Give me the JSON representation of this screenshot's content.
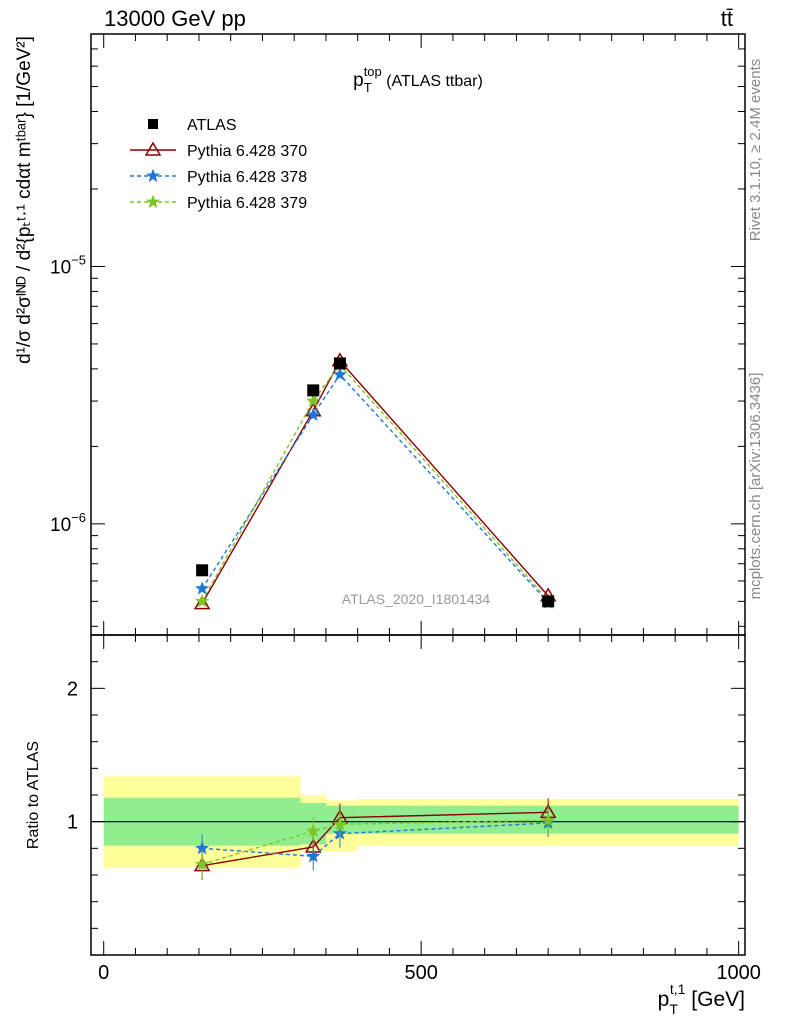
{
  "header": {
    "left": "13000 GeV pp",
    "right": "tt̄"
  },
  "side_labels": {
    "rivet": "Rivet 3.1.10, ≥ 2.4M events",
    "mcplots": "mcplots.cern.ch [arXiv:1306.3436]"
  },
  "chart_data": {
    "type": "line",
    "title_main": "p",
    "title_sub": "T",
    "title_sup": "top",
    "title_rest": " (ATLAS ttbar)",
    "watermark": "ATLAS_2020_I1801434",
    "ylabel": "d¹/σ d²σᴵᴺᴰ / d²{pₜᵗ·¹ cdαt mᵗᵇᵃʳ} [1/GeV²]",
    "ratio_ylabel": "Ratio to ATLAS",
    "xlabel_main": "p",
    "xlabel_sub": "T",
    "xlabel_sup": "t,1",
    "xlabel_unit": " [GeV]",
    "xlim": [
      -20,
      1010
    ],
    "ylim_log": [
      3.7e-07,
      8e-05
    ],
    "ratio_ylim": [
      0.0,
      2.4
    ],
    "x_ticks": [
      0,
      500,
      1000
    ],
    "x_tick_labels": [
      "0",
      "500",
      "1000"
    ],
    "y_major_ticks": [
      {
        "value": 1e-06,
        "label": "10",
        "exp": "−6"
      },
      {
        "value": 1e-05,
        "label": "10",
        "exp": "−5"
      }
    ],
    "ratio_y_ticks": [
      1,
      2
    ],
    "ratio_y_tick_labels": [
      "1",
      "2"
    ],
    "x": [
      155,
      330,
      372,
      700
    ],
    "bin_edges": [
      0,
      310,
      350,
      400,
      1000
    ],
    "series": [
      {
        "name": "ATLAS",
        "color": "#000000",
        "marker": "square",
        "dash": "none",
        "values": [
          6.6e-07,
          3.3e-06,
          4.2e-06,
          5e-07
        ],
        "ratio": [
          1.0,
          1.0,
          1.0,
          1.0
        ]
      },
      {
        "name": "Pythia 6.428 370",
        "color": "#8b0000",
        "marker": "triangle",
        "dash": "none",
        "values": [
          4.9e-07,
          2.75e-06,
          4.3e-06,
          5.25e-07
        ],
        "ratio": [
          0.67,
          0.81,
          1.03,
          1.07
        ]
      },
      {
        "name": "Pythia 6.428 378",
        "color": "#1f77d4",
        "marker": "star",
        "dash": "4,3",
        "values": [
          5.6e-07,
          2.65e-06,
          3.8e-06,
          4.95e-07
        ],
        "ratio": [
          0.8,
          0.74,
          0.91,
          0.99
        ]
      },
      {
        "name": "Pythia 6.428 379",
        "color": "#7cc623",
        "marker": "star",
        "dash": "4,3",
        "values": [
          5e-07,
          3e-06,
          4.15e-06,
          5.05e-07
        ],
        "ratio": [
          0.68,
          0.93,
          0.98,
          1.01
        ]
      }
    ],
    "uncertainty_bands": {
      "inner_color": "#90ee90",
      "outer_color": "#ffff99",
      "inner": [
        [
          0.82,
          1.18
        ],
        [
          0.83,
          1.14
        ],
        [
          0.91,
          1.12
        ],
        [
          0.91,
          1.12
        ]
      ],
      "outer": [
        [
          0.66,
          1.34
        ],
        [
          0.78,
          1.2
        ],
        [
          0.78,
          1.16
        ],
        [
          0.82,
          1.17
        ]
      ]
    }
  }
}
